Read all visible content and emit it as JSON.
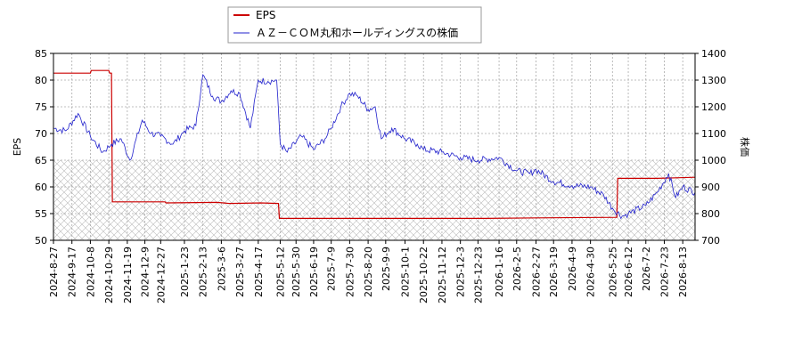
{
  "chart_data": {
    "type": "line",
    "ylabel_left": "EPS",
    "ylabel_right": "株価",
    "y_left_range": [
      50,
      85
    ],
    "y_left_ticks": [
      50,
      55,
      60,
      65,
      70,
      75,
      80,
      85
    ],
    "y_right_range": [
      700,
      1400
    ],
    "y_right_ticks": [
      700,
      800,
      900,
      1000,
      1100,
      1200,
      1300,
      1400
    ],
    "x_range": [
      "2024-08-27",
      "2026-08-27"
    ],
    "x_ticks": [
      "2024-8-27",
      "2024-9-17",
      "2024-10-8",
      "2024-10-29",
      "2024-11-19",
      "2024-12-9",
      "2024-12-27",
      "2025-1-23",
      "2025-2-13",
      "2025-3-6",
      "2025-3-27",
      "2025-4-17",
      "2025-5-12",
      "2025-5-30",
      "2025-6-19",
      "2025-7-9",
      "2025-7-30",
      "2025-8-20",
      "2025-9-9",
      "2025-10-1",
      "2025-10-22",
      "2025-11-12",
      "2025-12-3",
      "2025-12-23",
      "2026-1-16",
      "2026-2-5",
      "2026-2-27",
      "2026-3-19",
      "2026-4-9",
      "2026-4-30",
      "2026-5-25",
      "2026-6-12",
      "2026-7-2",
      "2026-7-23",
      "2026-8-13"
    ],
    "grid": true,
    "hatched_band_right_axis": [
      700,
      1000
    ],
    "legend_position": "top",
    "series": [
      {
        "name": "EPS",
        "axis": "left",
        "color": "#cc0000",
        "points": [
          [
            "2024-08-27",
            81.3
          ],
          [
            "2024-10-08",
            81.3
          ],
          [
            "2024-10-09",
            81.8
          ],
          [
            "2024-10-29",
            81.8
          ],
          [
            "2024-10-30",
            81.3
          ],
          [
            "2024-11-01",
            81.3
          ],
          [
            "2024-11-02",
            57.2
          ],
          [
            "2025-01-01",
            57.2
          ],
          [
            "2025-01-02",
            57.0
          ],
          [
            "2025-03-01",
            57.1
          ],
          [
            "2025-03-15",
            56.9
          ],
          [
            "2025-04-20",
            57.0
          ],
          [
            "2025-05-10",
            56.9
          ],
          [
            "2025-05-11",
            54.1
          ],
          [
            "2025-08-01",
            54.1
          ],
          [
            "2025-10-01",
            54.1
          ],
          [
            "2026-01-01",
            54.1
          ],
          [
            "2026-03-01",
            54.2
          ],
          [
            "2026-05-30",
            54.3
          ],
          [
            "2026-05-31",
            61.6
          ],
          [
            "2026-07-15",
            61.6
          ],
          [
            "2026-08-27",
            61.8
          ]
        ]
      },
      {
        "name": "ＡＺ－ＣＯＭ丸和ホールディングスの株価",
        "axis": "right",
        "color": "#2020cc",
        "points": [
          [
            "2024-08-27",
            1120
          ],
          [
            "2024-09-10",
            1110
          ],
          [
            "2024-09-24",
            1175
          ],
          [
            "2024-10-08",
            1090
          ],
          [
            "2024-10-22",
            1030
          ],
          [
            "2024-11-01",
            1060
          ],
          [
            "2024-11-12",
            1080
          ],
          [
            "2024-11-22",
            1000
          ],
          [
            "2024-12-06",
            1150
          ],
          [
            "2024-12-16",
            1100
          ],
          [
            "2024-12-27",
            1090
          ],
          [
            "2025-01-10",
            1060
          ],
          [
            "2025-01-23",
            1110
          ],
          [
            "2025-02-05",
            1130
          ],
          [
            "2025-02-13",
            1320
          ],
          [
            "2025-02-24",
            1240
          ],
          [
            "2025-03-06",
            1220
          ],
          [
            "2025-03-17",
            1260
          ],
          [
            "2025-03-27",
            1250
          ],
          [
            "2025-04-08",
            1120
          ],
          [
            "2025-04-17",
            1300
          ],
          [
            "2025-04-28",
            1295
          ],
          [
            "2025-05-08",
            1300
          ],
          [
            "2025-05-12",
            1060
          ],
          [
            "2025-05-20",
            1030
          ],
          [
            "2025-06-05",
            1090
          ],
          [
            "2025-06-19",
            1040
          ],
          [
            "2025-07-02",
            1080
          ],
          [
            "2025-07-09",
            1120
          ],
          [
            "2025-07-20",
            1200
          ],
          [
            "2025-07-30",
            1250
          ],
          [
            "2025-08-08",
            1240
          ],
          [
            "2025-08-20",
            1190
          ],
          [
            "2025-08-28",
            1200
          ],
          [
            "2025-09-04",
            1080
          ],
          [
            "2025-09-16",
            1120
          ],
          [
            "2025-10-01",
            1080
          ],
          [
            "2025-10-15",
            1060
          ],
          [
            "2025-10-22",
            1040
          ],
          [
            "2025-11-12",
            1030
          ],
          [
            "2025-12-03",
            1010
          ],
          [
            "2025-12-23",
            1000
          ],
          [
            "2026-01-16",
            1010
          ],
          [
            "2026-02-05",
            960
          ],
          [
            "2026-02-20",
            950
          ],
          [
            "2026-02-27",
            965
          ],
          [
            "2026-03-19",
            920
          ],
          [
            "2026-04-09",
            905
          ],
          [
            "2026-04-30",
            900
          ],
          [
            "2026-05-15",
            870
          ],
          [
            "2026-05-25",
            820
          ],
          [
            "2026-06-05",
            790
          ],
          [
            "2026-06-12",
            800
          ],
          [
            "2026-07-02",
            830
          ],
          [
            "2026-07-15",
            880
          ],
          [
            "2026-07-28",
            950
          ],
          [
            "2026-08-05",
            860
          ],
          [
            "2026-08-13",
            900
          ],
          [
            "2026-08-27",
            880
          ]
        ]
      }
    ]
  }
}
